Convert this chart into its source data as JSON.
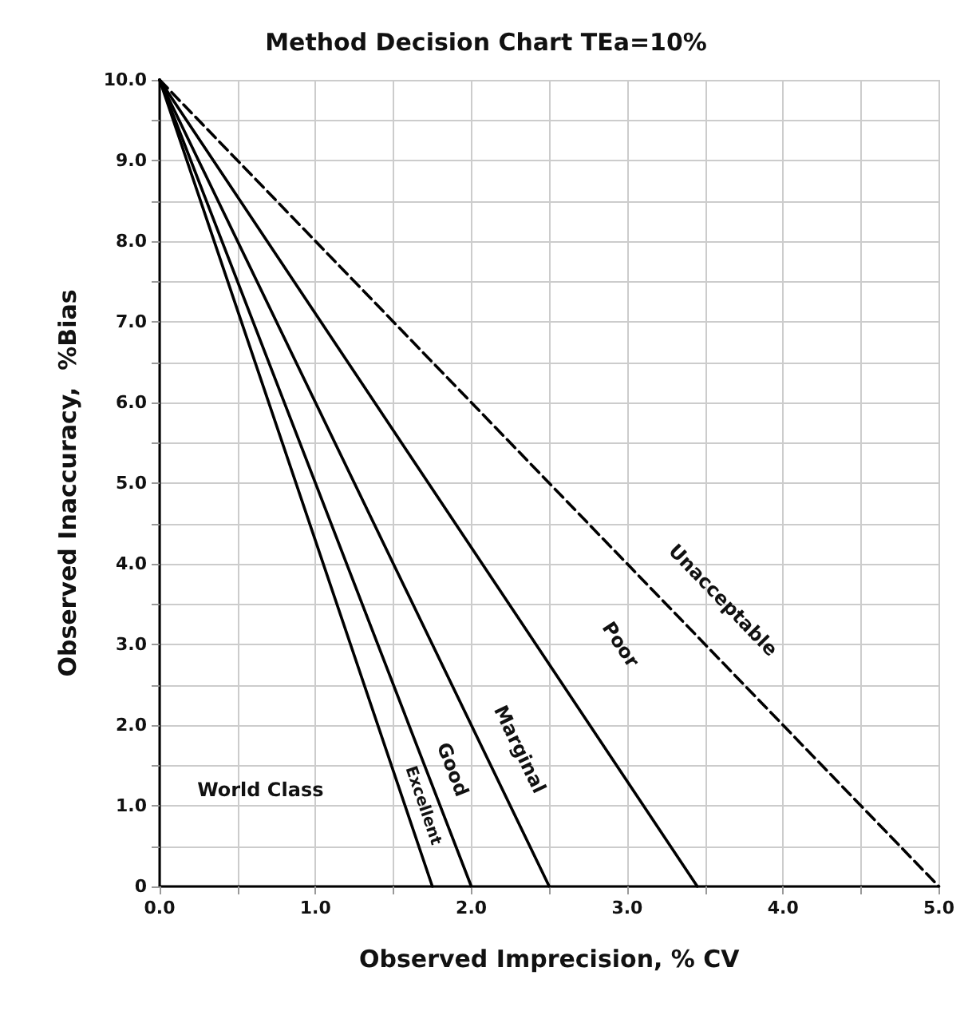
{
  "chart_data": {
    "type": "line",
    "title": "Method Decision Chart TEa=10%",
    "xlabel": "Observed Imprecision, % CV",
    "ylabel": "Observed Inaccuracy,  %Bias",
    "series": [
      {
        "color": "#000000",
        "x": [
          0,
          1.75
        ],
        "values": [
          10,
          0
        ]
      },
      {
        "color": "#000000",
        "x": [
          0,
          2.0
        ],
        "values": [
          10,
          0
        ]
      },
      {
        "color": "#000000",
        "x": [
          0,
          2.5
        ],
        "values": [
          10,
          0
        ]
      },
      {
        "color": "#000000",
        "x": [
          0,
          3.45
        ],
        "values": [
          10,
          0
        ]
      },
      {
        "color": "#000000",
        "x": [
          0,
          5.0
        ],
        "values": [
          10,
          0
        ],
        "line_style": "dashed"
      }
    ],
    "xlim": [
      0,
      5
    ],
    "ylim": [
      0,
      10
    ],
    "xticks": [
      {
        "value": 0,
        "label": "0.0"
      },
      {
        "value": 0.5,
        "label": null
      },
      {
        "value": 1,
        "label": "1.0"
      },
      {
        "value": 1.5,
        "label": null
      },
      {
        "value": 2,
        "label": "2.0"
      },
      {
        "value": 2.5,
        "label": null
      },
      {
        "value": 3,
        "label": "3.0"
      },
      {
        "value": 3.5,
        "label": null
      },
      {
        "value": 4,
        "label": "4.0"
      },
      {
        "value": 4.5,
        "label": null
      },
      {
        "value": 5,
        "label": "5.0"
      }
    ],
    "yticks": [
      0,
      {
        "value": 0.5,
        "label": null
      },
      {
        "value": 1,
        "label": "1.0"
      },
      {
        "value": 1.5,
        "label": null
      },
      {
        "value": 2,
        "label": "2.0"
      },
      {
        "value": 2.5,
        "label": null
      },
      {
        "value": 3,
        "label": "3.0"
      },
      {
        "value": 3.5,
        "label": null
      },
      {
        "value": 4,
        "label": "4.0"
      },
      {
        "value": 4.5,
        "label": null
      },
      {
        "value": 5,
        "label": "5.0"
      },
      {
        "value": 5.5,
        "label": null
      },
      {
        "value": 6,
        "label": "6.0"
      },
      {
        "value": 6.5,
        "label": null
      },
      {
        "value": 7,
        "label": "7.0"
      },
      {
        "value": 7.5,
        "label": null
      },
      {
        "value": 8,
        "label": "8.0"
      },
      {
        "value": 8.5,
        "label": null
      },
      {
        "value": 9,
        "label": "9.0"
      },
      {
        "value": 9.5,
        "label": null
      },
      {
        "value": 10,
        "label": "10.0"
      }
    ],
    "grid": true,
    "line_style": "solid",
    "marker": "none",
    "annotations": [
      "World Class",
      "Excellent",
      "Good",
      "Marginal",
      "Poor",
      "Unacceptable"
    ]
  }
}
